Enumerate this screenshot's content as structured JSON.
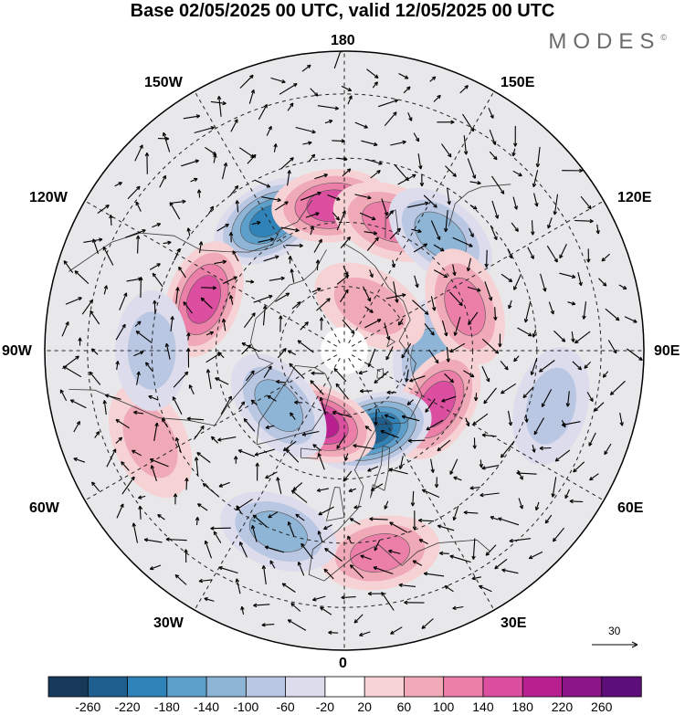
{
  "title": "Base 02/05/2025 00 UTC, valid 12/05/2025 00 UTC",
  "brand": "MODES",
  "brand_mark": "©",
  "longitude_labels": {
    "top": "180",
    "bottom": "0",
    "left": "90W",
    "right": "90E",
    "upper_left": "150W",
    "upper_left2": "120W",
    "upper_right": "150E",
    "upper_right2": "120E",
    "lower_left": "60W",
    "lower_left2": "30W",
    "lower_right": "60E",
    "lower_right2": "30E"
  },
  "reference_vector": {
    "label": "30"
  },
  "colorbar": {
    "ticks": [
      "-260",
      "-220",
      "-180",
      "-140",
      "-100",
      "-60",
      "-20",
      "20",
      "60",
      "100",
      "140",
      "180",
      "220",
      "260"
    ],
    "colors": [
      "#183a5a",
      "#1e5f8e",
      "#2f83b8",
      "#5d9fcb",
      "#8eb4d6",
      "#b9c7e2",
      "#dcdcec",
      "#ffffff",
      "#f6d2d4",
      "#f0a9b7",
      "#eb7fa8",
      "#dc4fa0",
      "#b81f8f",
      "#8a1687",
      "#5c0f78"
    ]
  },
  "anomaly_centers": [
    {
      "lon": -150,
      "lat": 55,
      "value": -200
    },
    {
      "lon": -175,
      "lat": 56,
      "value": 160
    },
    {
      "lon": 160,
      "lat": 58,
      "value": 100
    },
    {
      "lon": 140,
      "lat": 55,
      "value": -120
    },
    {
      "lon": -110,
      "lat": 55,
      "value": 160
    },
    {
      "lon": 85,
      "lat": 70,
      "value": -120
    },
    {
      "lon": 60,
      "lat": 65,
      "value": 160
    },
    {
      "lon": 20,
      "lat": 70,
      "value": -220
    },
    {
      "lon": -20,
      "lat": 72,
      "value": 180
    },
    {
      "lon": -50,
      "lat": 70,
      "value": -120
    },
    {
      "lon": 10,
      "lat": 42,
      "value": 100
    },
    {
      "lon": -20,
      "lat": 45,
      "value": -100
    },
    {
      "lon": 110,
      "lat": 60,
      "value": 100
    },
    {
      "lon": 75,
      "lat": 40,
      "value": -80
    },
    {
      "lon": -65,
      "lat": 40,
      "value": 60
    },
    {
      "lon": -90,
      "lat": 45,
      "value": -80
    },
    {
      "lon": 150,
      "lat": 78,
      "value": 80
    }
  ]
}
